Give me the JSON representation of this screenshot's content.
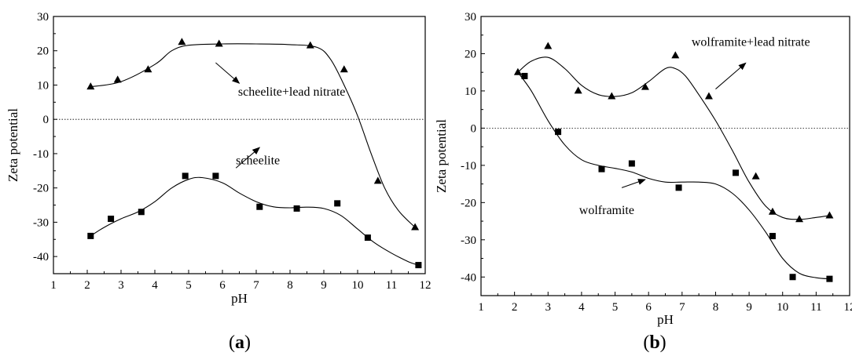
{
  "panels": [
    {
      "label_open": "(",
      "label": "a",
      "label_close": ")"
    },
    {
      "label_open": "(",
      "label": "b",
      "label_close": ")"
    }
  ],
  "chart_data": [
    {
      "type": "scatter",
      "title": "",
      "xlabel": "pH",
      "ylabel": "Zeta potential",
      "xlim": [
        1,
        12
      ],
      "ylim": [
        -45,
        30
      ],
      "xticks": [
        1,
        2,
        3,
        4,
        5,
        6,
        7,
        8,
        9,
        10,
        11,
        12
      ],
      "yticks": [
        -40,
        -30,
        -20,
        -10,
        0,
        10,
        20,
        30
      ],
      "zero_line": true,
      "grid": false,
      "series": [
        {
          "name": "scheelite+lead nitrate",
          "marker": "triangle",
          "x": [
            2.1,
            2.9,
            3.8,
            4.8,
            5.9,
            8.6,
            9.6,
            10.6,
            11.7
          ],
          "y": [
            9.5,
            11.5,
            14.5,
            22.5,
            22.0,
            21.5,
            14.5,
            -18.0,
            -31.5
          ],
          "curve_x": [
            2.1,
            3.0,
            4.0,
            4.5,
            5.0,
            6.0,
            7.0,
            8.0,
            8.8,
            9.2,
            9.6,
            10.0,
            10.4,
            10.8,
            11.2,
            11.7
          ],
          "curve_y": [
            9.5,
            11.0,
            16.0,
            20.0,
            21.6,
            22.0,
            22.0,
            21.8,
            21.0,
            17.5,
            10.0,
            1.0,
            -10.0,
            -20.0,
            -26.5,
            -31.5
          ]
        },
        {
          "name": "scheelite",
          "marker": "square",
          "x": [
            2.1,
            2.7,
            3.6,
            4.9,
            5.8,
            7.1,
            8.2,
            9.4,
            10.3,
            11.8
          ],
          "y": [
            -34.0,
            -29.0,
            -27.0,
            -16.5,
            -16.5,
            -25.5,
            -26.0,
            -24.5,
            -34.5,
            -42.5
          ],
          "curve_x": [
            2.1,
            2.5,
            3.0,
            3.5,
            4.0,
            4.5,
            5.0,
            5.4,
            6.0,
            6.5,
            7.0,
            7.5,
            8.0,
            8.5,
            9.0,
            9.5,
            10.0,
            10.5,
            11.0,
            11.5,
            11.8
          ],
          "curve_y": [
            -34.0,
            -31.5,
            -29.0,
            -27.0,
            -24.0,
            -20.0,
            -17.5,
            -17.0,
            -18.5,
            -21.5,
            -24.0,
            -25.5,
            -25.8,
            -25.6,
            -26.0,
            -28.0,
            -32.0,
            -36.0,
            -39.0,
            -41.5,
            -42.5
          ]
        }
      ],
      "annotations": [
        {
          "text": "scheelite+lead nitrate",
          "x": 8.05,
          "y": 8.0
        },
        {
          "text": "scheelite",
          "x": 7.05,
          "y": -12.0
        }
      ]
    },
    {
      "type": "scatter",
      "title": "",
      "xlabel": "pH",
      "ylabel": "Zeta potential",
      "xlim": [
        1,
        12
      ],
      "ylim": [
        -45,
        30
      ],
      "xticks": [
        1,
        2,
        3,
        4,
        5,
        6,
        7,
        8,
        9,
        10,
        11,
        12
      ],
      "yticks": [
        -40,
        -30,
        -20,
        -10,
        0,
        10,
        20,
        30
      ],
      "zero_line": true,
      "grid": false,
      "series": [
        {
          "name": "wolframite+lead nitrate",
          "marker": "triangle",
          "x": [
            2.1,
            3.0,
            3.9,
            4.9,
            5.9,
            6.8,
            7.8,
            9.2,
            9.7,
            10.5,
            11.4
          ],
          "y": [
            15.0,
            22.0,
            10.0,
            8.5,
            11.0,
            19.5,
            8.5,
            -13.0,
            -22.5,
            -24.5,
            -23.5
          ],
          "curve_x": [
            2.1,
            2.5,
            3.0,
            3.5,
            4.0,
            4.5,
            5.0,
            5.5,
            6.0,
            6.5,
            6.8,
            7.1,
            7.5,
            8.0,
            8.5,
            9.0,
            9.5,
            10.0,
            10.5,
            11.0,
            11.4
          ],
          "curve_y": [
            15.0,
            18.0,
            19.0,
            16.0,
            11.5,
            9.0,
            8.5,
            9.5,
            12.5,
            16.0,
            16.0,
            14.0,
            9.0,
            2.0,
            -6.0,
            -14.5,
            -21.0,
            -24.0,
            -24.5,
            -24.0,
            -23.5
          ]
        },
        {
          "name": "wolframite",
          "marker": "square",
          "x": [
            2.3,
            3.3,
            4.6,
            5.5,
            6.9,
            8.6,
            9.7,
            10.3,
            11.4
          ],
          "y": [
            14.0,
            -1.0,
            -11.0,
            -9.5,
            -16.0,
            -12.0,
            -29.0,
            -40.0,
            -40.5
          ],
          "curve_x": [
            2.1,
            2.5,
            3.0,
            3.5,
            4.0,
            4.5,
            5.0,
            5.5,
            6.0,
            6.5,
            7.0,
            7.5,
            8.0,
            8.5,
            9.0,
            9.5,
            10.0,
            10.5,
            11.0,
            11.4
          ],
          "curve_y": [
            15.0,
            10.0,
            2.0,
            -4.5,
            -8.5,
            -10.0,
            -10.8,
            -11.8,
            -13.5,
            -14.5,
            -14.5,
            -14.5,
            -15.0,
            -17.5,
            -22.0,
            -28.0,
            -35.0,
            -39.0,
            -40.2,
            -40.5
          ]
        }
      ],
      "annotations": [
        {
          "text": "wolframite+lead nitrate",
          "x": 9.05,
          "y": 23.2
        },
        {
          "text": "wolframite",
          "x": 4.75,
          "y": -22.0
        }
      ]
    }
  ]
}
